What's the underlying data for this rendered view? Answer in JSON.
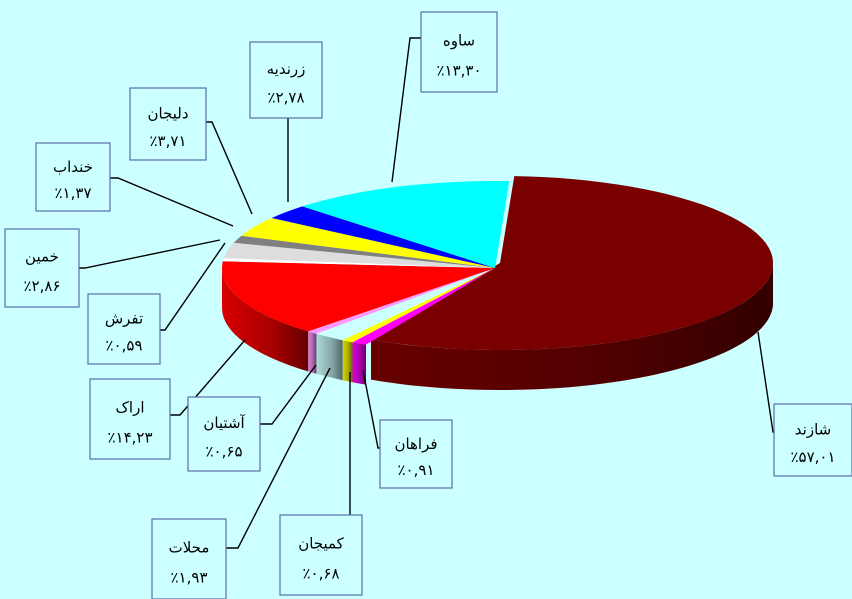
{
  "chart_data": {
    "type": "pie",
    "style": "3d-exploded-first-slice",
    "legend": "none",
    "slices": [
      {
        "name": "شازند",
        "value": 57.01,
        "label": "٪۵۷,۰۱",
        "color": "#7a0000"
      },
      {
        "name": "فراهان",
        "value": 0.91,
        "label": "٪۰,۹۱",
        "color": "#ff00ff"
      },
      {
        "name": "کمیجان",
        "value": 0.68,
        "label": "٪۰,۶۸",
        "color": "#ffff00"
      },
      {
        "name": "محلات",
        "value": 1.93,
        "label": "٪۱,۹۳",
        "color": "#ccffff"
      },
      {
        "name": "آشتیان",
        "value": 0.65,
        "label": "٪۰,۶۵",
        "color": "#ff99ff"
      },
      {
        "name": "اراک",
        "value": 14.23,
        "label": "٪۱۴,۲۳",
        "color": "#ff0000"
      },
      {
        "name": "تفرش",
        "value": 0.59,
        "label": "٪۰,۵۹",
        "color": "#ffffff"
      },
      {
        "name": "خمین",
        "value": 2.86,
        "label": "٪۲,۸۶",
        "color": "#dddddd"
      },
      {
        "name": "خنداب",
        "value": 1.37,
        "label": "٪۱,۳۷",
        "color": "#808080"
      },
      {
        "name": "دلیجان",
        "value": 3.71,
        "label": "٪۳,۷۱",
        "color": "#ffff00"
      },
      {
        "name": "زرندیه",
        "value": 2.78,
        "label": "٪۲,۷۸",
        "color": "#0000ff"
      },
      {
        "name": "ساوه",
        "value": 13.3,
        "label": "٪۱۳,۳۰",
        "color": "#00ffff"
      }
    ]
  }
}
